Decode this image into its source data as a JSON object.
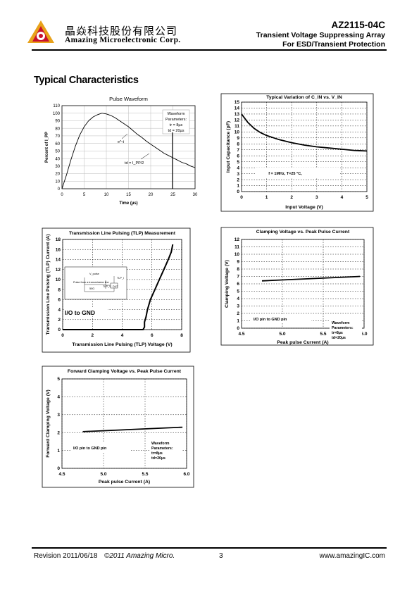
{
  "header": {
    "company_cn": "晶焱科技股份有限公司",
    "company_en": "Amazing Microelectronic Corp.",
    "part_number": "AZ2115-04C",
    "subtitle1": "Transient Voltage Suppressing Array",
    "subtitle2": "For ESD/Transient Protection"
  },
  "section_title": "Typical Characteristics",
  "footer": {
    "revision": "Revision 2011/06/18",
    "copyright": "©2011 Amazing Micro.",
    "page": "3",
    "website": "www.amazingIC.com"
  },
  "chart_data": [
    {
      "type": "line",
      "title": "Pulse Waveform",
      "xlabel": "Time (µs)",
      "ylabel": "Percent of I_PP",
      "xlim": [
        0,
        30
      ],
      "ylim": [
        0,
        110
      ],
      "xticks": [
        "0",
        "5",
        "10",
        "15",
        "20",
        "25",
        "30"
      ],
      "yticks": [
        "0",
        "10",
        "20",
        "30",
        "40",
        "50",
        "60",
        "70",
        "80",
        "90",
        "100",
        "110"
      ],
      "grid": true,
      "series": [
        {
          "x": [
            0,
            1,
            2,
            3,
            4,
            5,
            6,
            7,
            8,
            9,
            10,
            11,
            12,
            13,
            14,
            15,
            16,
            17,
            18,
            19,
            20,
            21,
            22,
            23,
            24,
            25,
            26,
            27,
            28,
            29,
            30
          ],
          "y": [
            0,
            18,
            38,
            56,
            71,
            82,
            90,
            95,
            98,
            100,
            99,
            97,
            94,
            90,
            86,
            82,
            77,
            72,
            68,
            63,
            59,
            55,
            51,
            47,
            44,
            41,
            38,
            35,
            33,
            30,
            28
          ]
        }
      ],
      "annotations": [
        "Waveform",
        "Parameters:",
        "tr = 8µs",
        "td = 20µs",
        "e^-t",
        "td = I_PP/2"
      ]
    },
    {
      "type": "line",
      "title": "Typical Variation of C_IN vs. V_IN",
      "xlabel": "Input Voltage (V)",
      "ylabel": "Input Capacitance (pF)",
      "xlim": [
        0,
        5
      ],
      "ylim": [
        0,
        15
      ],
      "xticks": [
        "0",
        "1",
        "2",
        "3",
        "4",
        "5"
      ],
      "yticks": [
        "0",
        "1",
        "2",
        "3",
        "4",
        "5",
        "6",
        "7",
        "8",
        "9",
        "10",
        "11",
        "12",
        "13",
        "14",
        "15"
      ],
      "grid": true,
      "series": [
        {
          "x": [
            0,
            0.25,
            0.5,
            0.75,
            1,
            1.5,
            2,
            2.5,
            3,
            3.5,
            4,
            4.5,
            5
          ],
          "y": [
            13,
            11.6,
            10.6,
            9.9,
            9.4,
            8.7,
            8.2,
            7.8,
            7.5,
            7.3,
            7.1,
            6.9,
            6.8
          ]
        }
      ],
      "annotations": [
        "f = 1MHz, T=25 °C,"
      ]
    },
    {
      "type": "line",
      "title": "Transmission Line Pulsing (TLP) Measurement",
      "xlabel": "Transmission Line Pulsing (TLP) Voltage (V)",
      "ylabel": "Transmission Line Pulsing (TLP) Current (A)",
      "xlim": [
        0,
        8
      ],
      "ylim": [
        0,
        18
      ],
      "xticks": [
        "0",
        "2",
        "4",
        "6",
        "8"
      ],
      "yticks": [
        "0",
        "2",
        "4",
        "6",
        "8",
        "10",
        "12",
        "14",
        "16",
        "18"
      ],
      "grid": true,
      "series": [
        {
          "x": [
            0,
            1,
            2,
            3,
            4,
            5,
            5.4,
            5.5,
            5.5,
            5.6,
            5.7,
            5.9,
            6.2,
            6.5,
            6.8,
            7.1,
            7.3,
            7.4
          ],
          "y": [
            0,
            0,
            0,
            0,
            0,
            0,
            0,
            0.5,
            1.5,
            2.5,
            4,
            6,
            8,
            10,
            12,
            14,
            15.5,
            17
          ]
        }
      ],
      "annotations": [
        "I/O to GND",
        "Pulse from a transmission line",
        "V_pulse",
        "50Ω",
        "TLP_V",
        "DUT",
        "TLP_I"
      ]
    },
    {
      "type": "line",
      "title": "Clamping Voltage vs. Peak Pulse Current",
      "xlabel": "Peak pulse Current (A)",
      "ylabel": "Clamping Voltage (V)",
      "xlim": [
        4.5,
        6.0
      ],
      "ylim": [
        0,
        12
      ],
      "xticks": [
        "4.5",
        "5.0",
        "5.5",
        "6.0"
      ],
      "yticks": [
        "0",
        "1",
        "2",
        "3",
        "4",
        "5",
        "6",
        "7",
        "8",
        "9",
        "10",
        "11",
        "12"
      ],
      "grid": true,
      "series": [
        {
          "x": [
            4.75,
            5.95
          ],
          "y": [
            6.4,
            7.0
          ]
        }
      ],
      "annotations": [
        "I/O pin to GND pin",
        "Waveform",
        "Parameters:",
        "tr=8µs",
        "td=20µs"
      ]
    },
    {
      "type": "line",
      "title": "Forward Clamping Voltage vs. Peak Pulse Current",
      "xlabel": "Peak pulse Current (A)",
      "ylabel": "Forward Clamping Voltage (V)",
      "xlim": [
        4.5,
        6.0
      ],
      "ylim": [
        0,
        5
      ],
      "xticks": [
        "4.5",
        "5.0",
        "5.5",
        "6.0"
      ],
      "yticks": [
        "0",
        "1",
        "2",
        "3",
        "4",
        "5"
      ],
      "grid": true,
      "series": [
        {
          "x": [
            4.75,
            5.95
          ],
          "y": [
            2.05,
            2.3
          ]
        }
      ],
      "annotations": [
        "I/O pin to GND pin",
        "Waveform",
        "Parameters:",
        "tr=8µs",
        "td=20µs"
      ]
    }
  ]
}
